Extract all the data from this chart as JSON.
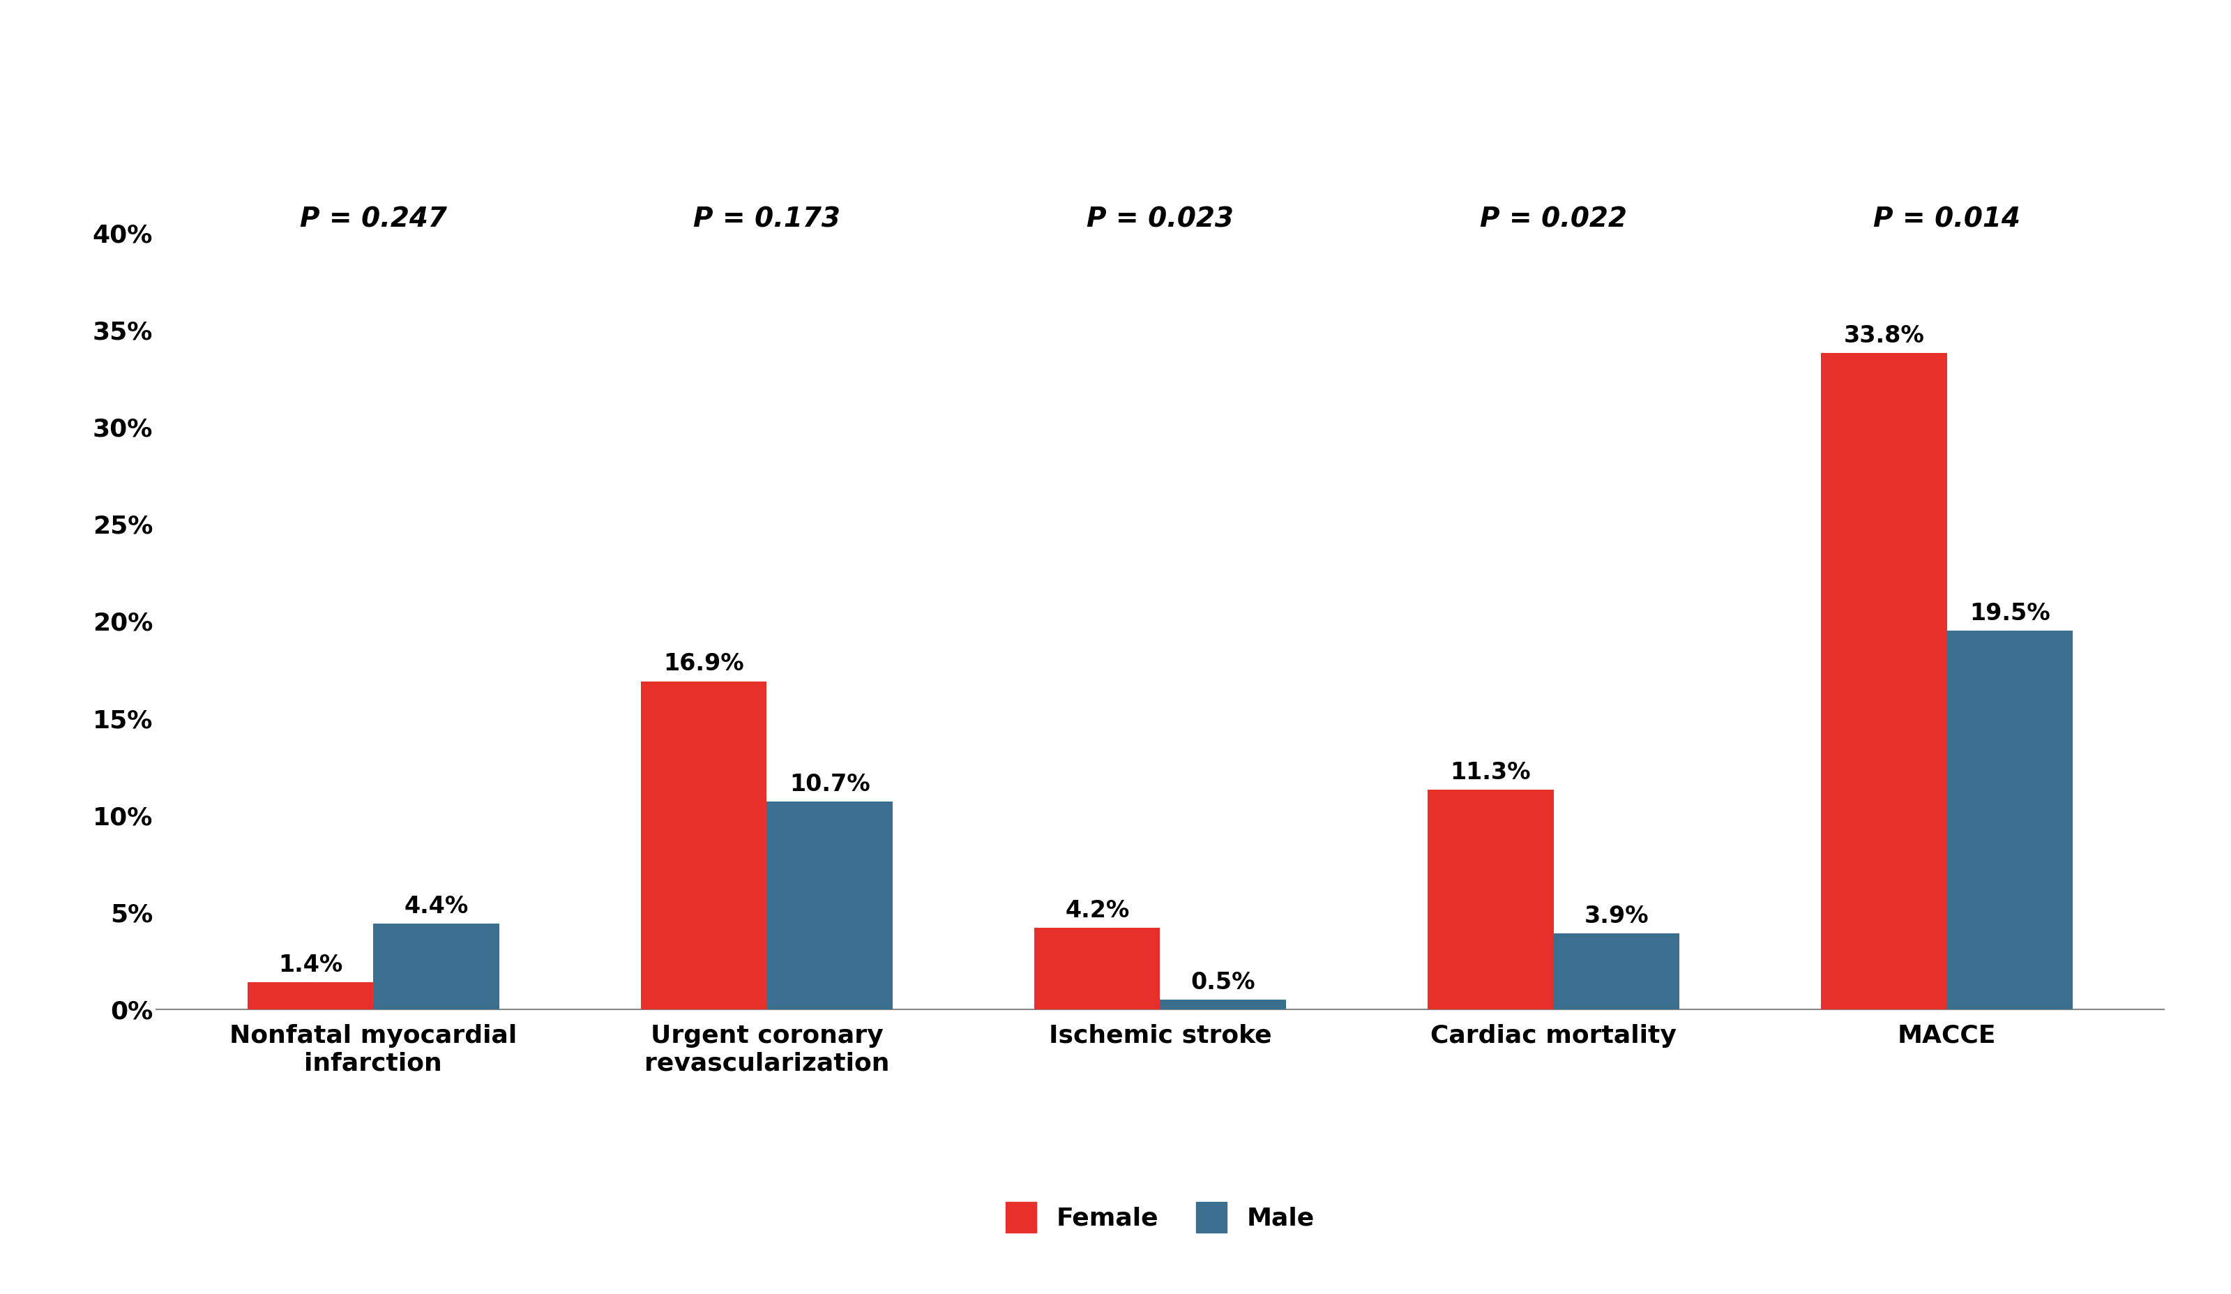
{
  "categories": [
    "Nonfatal myocardial\ninfarction",
    "Urgent coronary\nrevascularization",
    "Ischemic stroke",
    "Cardiac mortality",
    "MACCE"
  ],
  "female_values": [
    1.4,
    16.9,
    4.2,
    11.3,
    33.8
  ],
  "male_values": [
    4.4,
    10.7,
    0.5,
    3.9,
    19.5
  ],
  "female_labels": [
    "1.4%",
    "16.9%",
    "4.2%",
    "11.3%",
    "33.8%"
  ],
  "male_labels": [
    "4.4%",
    "10.7%",
    "0.5%",
    "3.9%",
    "19.5%"
  ],
  "p_values": [
    "P = 0.247",
    "P = 0.173",
    "P = 0.023",
    "P = 0.022",
    "P = 0.014"
  ],
  "female_color": "#E8302A",
  "male_color": "#3A6F8F",
  "bar_width": 0.32,
  "ylim": [
    0,
    40
  ],
  "yticks": [
    0,
    5,
    10,
    15,
    20,
    25,
    30,
    35,
    40
  ],
  "ytick_labels": [
    "0%",
    "5%",
    "10%",
    "15%",
    "20%",
    "25%",
    "30%",
    "35%",
    "40%"
  ],
  "label_fontsize": 26,
  "tick_fontsize": 26,
  "pval_fontsize": 28,
  "legend_fontsize": 26,
  "annot_fontsize": 24,
  "background_color": "#ffffff"
}
